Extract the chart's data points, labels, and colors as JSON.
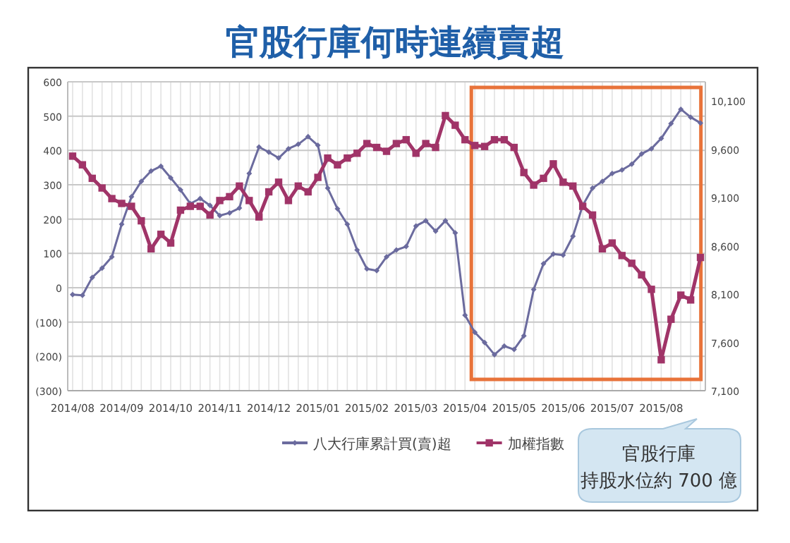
{
  "chart_data": {
    "type": "line",
    "title": "官股行庫何時連續賣超",
    "categories": [
      "2014/08",
      null,
      null,
      null,
      null,
      "2014/09",
      null,
      null,
      null,
      null,
      "2014/10",
      null,
      null,
      null,
      null,
      "2014/11",
      null,
      null,
      null,
      null,
      "2014/12",
      null,
      null,
      null,
      null,
      "2015/01",
      null,
      null,
      null,
      null,
      "2015/02",
      null,
      null,
      null,
      null,
      "2015/03",
      null,
      null,
      null,
      null,
      "2015/04",
      null,
      null,
      null,
      null,
      "2015/05",
      null,
      null,
      null,
      null,
      "2015/06",
      null,
      null,
      null,
      null,
      "2015/07",
      null,
      null,
      null,
      null,
      "2015/08",
      null,
      null,
      null,
      null
    ],
    "series": [
      {
        "name": "八大行庫累計買(賣)超",
        "color": "#6b6b9e",
        "marker": "diamond",
        "values": [
          -20,
          -22,
          30,
          57,
          90,
          185,
          265,
          310,
          340,
          354,
          320,
          285,
          245,
          260,
          240,
          210,
          218,
          232,
          333,
          410,
          395,
          378,
          405,
          418,
          440,
          415,
          290,
          230,
          185,
          110,
          55,
          50,
          90,
          110,
          120,
          180,
          195,
          165,
          195,
          160,
          -80,
          -130,
          -160,
          -195,
          -170,
          -180,
          -140,
          -5,
          70,
          98,
          95,
          150,
          240,
          290,
          310,
          333,
          343,
          360,
          390,
          405,
          435,
          478,
          520,
          497,
          480
        ]
      },
      {
        "name": "加權指數",
        "color": "#a03468",
        "marker": "square",
        "axis": "y2",
        "values": [
          9530,
          9440,
          9300,
          9200,
          9090,
          9040,
          9010,
          8860,
          8570,
          8720,
          8630,
          8970,
          9010,
          9010,
          8920,
          9070,
          9110,
          9220,
          9070,
          8900,
          9160,
          9260,
          9070,
          9220,
          9160,
          9310,
          9510,
          9440,
          9510,
          9560,
          9660,
          9620,
          9580,
          9660,
          9700,
          9560,
          9660,
          9620,
          9950,
          9850,
          9700,
          9640,
          9630,
          9700,
          9700,
          9620,
          9360,
          9230,
          9300,
          9450,
          9260,
          9220,
          9010,
          8920,
          8570,
          8630,
          8500,
          8420,
          8300,
          8150,
          7420,
          7840,
          8090,
          8040,
          8480
        ]
      }
    ],
    "ylim": [
      -300,
      600
    ],
    "yticks": [
      {
        "value": -300,
        "label": "(300)"
      },
      {
        "value": -200,
        "label": "(200)"
      },
      {
        "value": -100,
        "label": "(100)"
      },
      0,
      100,
      200,
      300,
      400,
      500,
      600
    ],
    "y2lim": [
      7100,
      10300
    ],
    "y2ticks": [
      {
        "value": 7100,
        "label": "7,100"
      },
      {
        "value": 7600,
        "label": "7,600"
      },
      {
        "value": 8100,
        "label": "8,100"
      },
      {
        "value": 8600,
        "label": "8,600"
      },
      {
        "value": 9100,
        "label": "9,100"
      },
      {
        "value": 9600,
        "label": "9,600"
      },
      {
        "value": 10100,
        "label": "10,100"
      }
    ],
    "grid": true,
    "legend": "bottom",
    "annotations": [
      "官股行庫",
      "持股水位約 700 億"
    ]
  }
}
